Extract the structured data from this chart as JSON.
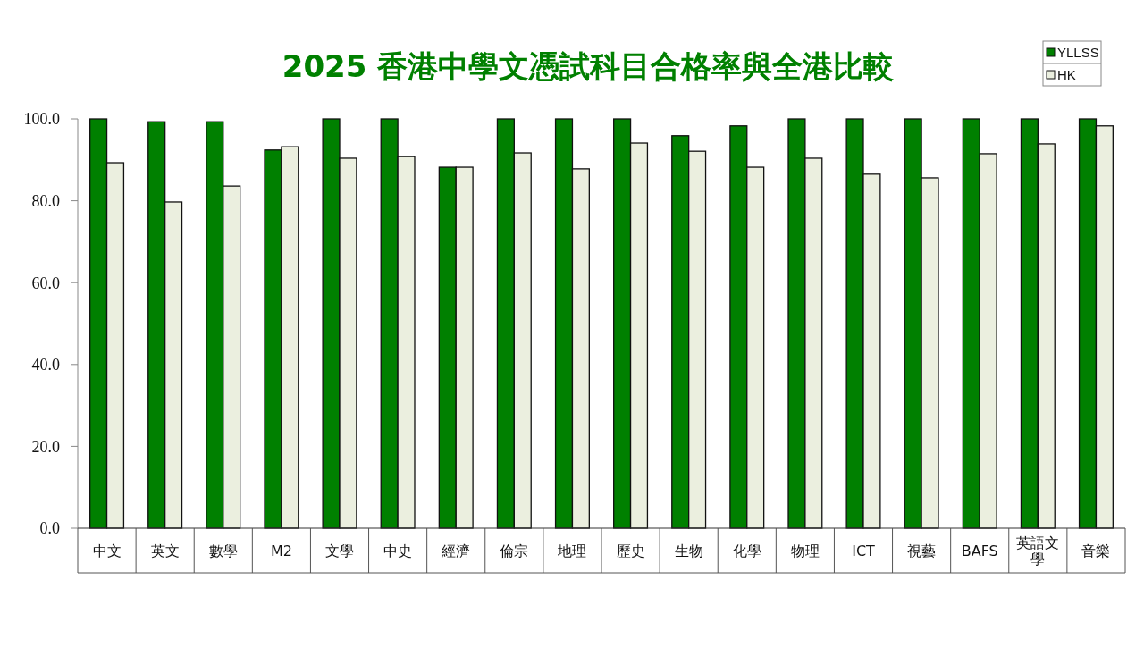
{
  "chart_data": {
    "type": "bar",
    "title": "2025 香港中學文憑試科目合格率與全港比較",
    "categories": [
      "中文",
      "英文",
      "數學",
      "M2",
      "文學",
      "中史",
      "經濟",
      "倫宗",
      "地理",
      "歷史",
      "生物",
      "化學",
      "物理",
      "ICT",
      "視藝",
      "BAFS",
      "英語文學",
      "音樂"
    ],
    "series": [
      {
        "name": "YLLSS",
        "color": "#008000",
        "values": [
          100,
          99.3,
          99.3,
          92.4,
          100,
          100,
          88.2,
          100,
          100,
          100,
          95.9,
          98.3,
          100,
          100,
          100,
          100,
          100,
          100
        ]
      },
      {
        "name": "HK",
        "color": "#ebefdf",
        "values": [
          89.3,
          79.7,
          83.6,
          93.2,
          90.4,
          90.8,
          88.2,
          91.7,
          87.8,
          94.1,
          92.1,
          88.2,
          90.4,
          86.5,
          85.6,
          91.5,
          93.9,
          98.3
        ]
      }
    ],
    "ylim": [
      0,
      100
    ],
    "yticks": [
      {
        "value": 0,
        "label": "0.0"
      },
      {
        "value": 20,
        "label": "20.0"
      },
      {
        "value": 40,
        "label": "40.0"
      },
      {
        "value": 60,
        "label": "60.0"
      },
      {
        "value": 80,
        "label": "80.0"
      },
      {
        "value": 100,
        "label": "100.0"
      }
    ],
    "grid": false,
    "legend": "top right"
  }
}
